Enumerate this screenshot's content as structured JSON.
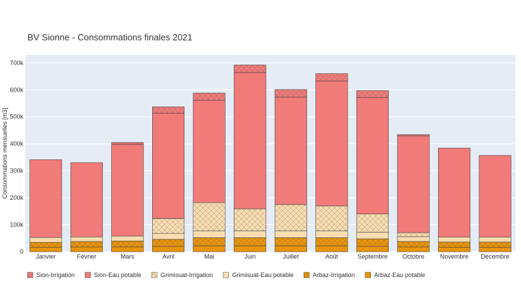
{
  "chart_data": {
    "type": "bar",
    "stacked": true,
    "title": "BV Sionne - Consommations finales 2021",
    "xlabel": "",
    "ylabel": "Consommations mensuelles [m3]",
    "ylim": [
      0,
      730000
    ],
    "yticks": [
      0,
      100000,
      200000,
      300000,
      400000,
      500000,
      600000,
      700000
    ],
    "yticklabels": [
      "0",
      "100k",
      "200k",
      "300k",
      "400k",
      "500k",
      "600k",
      "700k"
    ],
    "grid": true,
    "legend_position": "bottom",
    "categories": [
      "Janvier",
      "Février",
      "Mars",
      "Avril",
      "Mai",
      "Juin",
      "Juillet",
      "Août",
      "Septembre",
      "Octobre",
      "Novembre",
      "Décembre"
    ],
    "series": [
      {
        "name": "Arbaz-Eau potable",
        "color": "#e8940a",
        "pattern": "none",
        "values": [
          17000,
          18000,
          18000,
          20000,
          22000,
          22000,
          22000,
          22000,
          20000,
          18000,
          17000,
          17000
        ]
      },
      {
        "name": "Arbaz-Irrigation",
        "color": "#e8940a",
        "pattern": "cross",
        "values": [
          18000,
          20000,
          22000,
          26000,
          30000,
          30000,
          30000,
          30000,
          28000,
          20000,
          19000,
          19000
        ]
      },
      {
        "name": "Grimisuat-Eau potable",
        "color": "#f9ddb0",
        "pattern": "none",
        "values": [
          18000,
          17000,
          18000,
          22000,
          25000,
          25000,
          25000,
          25000,
          24000,
          18000,
          18000,
          18000
        ]
      },
      {
        "name": "Grimisuat-Irrigation",
        "color": "#f9ddb0",
        "pattern": "cross",
        "values": [
          0,
          0,
          0,
          55000,
          105000,
          82000,
          98000,
          93000,
          68000,
          15000,
          0,
          0
        ]
      },
      {
        "name": "Sion-Eau potable",
        "color": "#f07b79",
        "pattern": "none",
        "values": [
          288000,
          275000,
          340000,
          390000,
          380000,
          505000,
          398000,
          462000,
          432000,
          358000,
          330000,
          303000
        ]
      },
      {
        "name": "Sion-Irrigation",
        "color": "#f07b79",
        "pattern": "cross",
        "values": [
          0,
          0,
          7000,
          24000,
          26000,
          28000,
          28000,
          28000,
          25000,
          5000,
          0,
          0
        ]
      }
    ],
    "legend_order": [
      "Sion-Irrigation",
      "Sion-Eau potable",
      "Grimisuat-Irrigation",
      "Grimisuat-Eau potable",
      "Arbaz-Irrigation",
      "Arbaz-Eau potable"
    ]
  }
}
